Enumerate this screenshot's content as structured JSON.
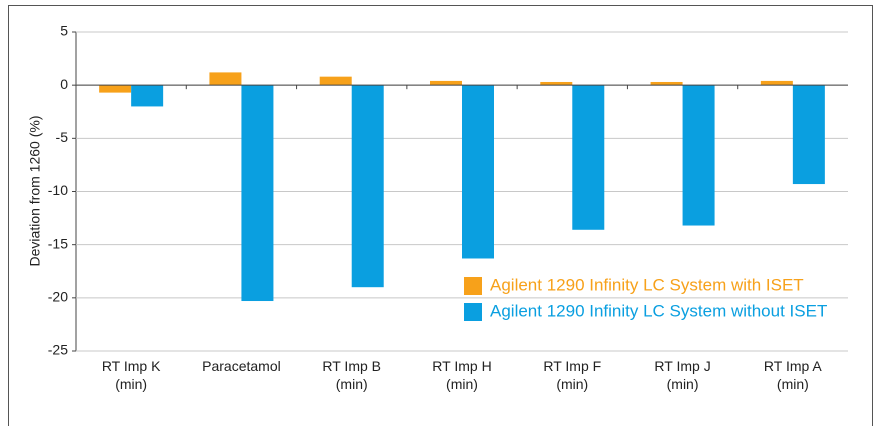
{
  "chart_data": {
    "type": "bar",
    "y_label": "Deviation from 1260 (%)",
    "categories": [
      "RT Imp K\n(min)",
      "Paracetamol",
      "RT Imp B\n(min)",
      "RT Imp H\n(min)",
      "RT Imp F\n(min)",
      "RT Imp J\n(min)",
      "RT Imp A\n(min)"
    ],
    "series": [
      {
        "name": "Agilent 1290 Infinity LC System with ISET",
        "color": "#f7a11a",
        "values": [
          -0.7,
          1.2,
          0.8,
          0.4,
          0.3,
          0.3,
          0.4
        ]
      },
      {
        "name": "Agilent 1290 Infinity LC System without ISET",
        "color": "#0a9fe0",
        "values": [
          -2.0,
          -20.3,
          -19.0,
          -16.3,
          -13.6,
          -13.2,
          -9.3
        ]
      }
    ],
    "ylim": [
      -25,
      5
    ],
    "yticks": [
      -25,
      -20,
      -15,
      -10,
      -5,
      0,
      5
    ],
    "grid": true
  }
}
